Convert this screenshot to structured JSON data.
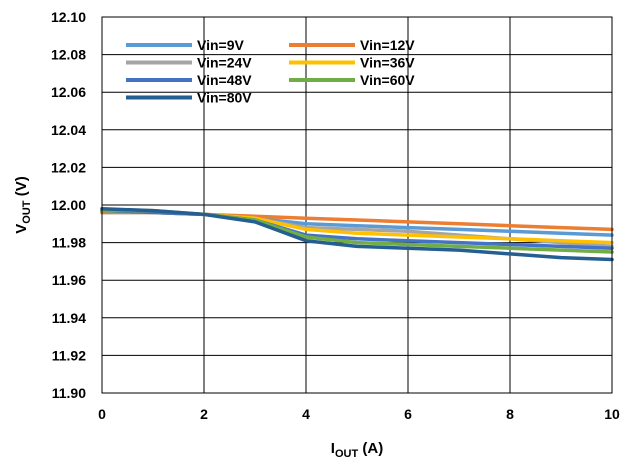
{
  "chart_data": {
    "type": "line",
    "title": "",
    "xlabel": {
      "main": "I",
      "sub": "OUT",
      "unit": " (A)"
    },
    "ylabel": {
      "main": "V",
      "sub": "OUT",
      "unit": " (V)"
    },
    "xlim": [
      0,
      10
    ],
    "ylim": [
      11.9,
      12.1
    ],
    "x_ticks": [
      0,
      2,
      4,
      6,
      8,
      10
    ],
    "x_tick_labels": [
      "0",
      "2",
      "4",
      "6",
      "8",
      "10"
    ],
    "y_ticks": [
      11.9,
      11.92,
      11.94,
      11.96,
      11.98,
      12.0,
      12.02,
      12.04,
      12.06,
      12.08,
      12.1
    ],
    "y_tick_labels": [
      "11.90",
      "11.92",
      "11.94",
      "11.96",
      "11.98",
      "12.00",
      "12.02",
      "12.04",
      "12.06",
      "12.08",
      "12.10"
    ],
    "grid": true,
    "legend_position": "top-left",
    "x": [
      0,
      1,
      2,
      3,
      4,
      5,
      6,
      7,
      8,
      9,
      10
    ],
    "series": [
      {
        "name": "Vin=9V",
        "color": "#5b9bd5",
        "values": [
          11.996,
          11.996,
          11.995,
          11.993,
          11.99,
          11.989,
          11.988,
          11.987,
          11.986,
          11.985,
          11.984
        ]
      },
      {
        "name": "Vin=12V",
        "color": "#ed7d31",
        "values": [
          11.996,
          11.996,
          11.995,
          11.994,
          11.993,
          11.992,
          11.991,
          11.99,
          11.989,
          11.988,
          11.987
        ]
      },
      {
        "name": "Vin=24V",
        "color": "#a5a5a5",
        "values": [
          11.997,
          11.996,
          11.995,
          11.993,
          11.988,
          11.987,
          11.986,
          11.984,
          11.982,
          11.98,
          11.978
        ]
      },
      {
        "name": "Vin=36V",
        "color": "#ffc000",
        "values": [
          11.997,
          11.996,
          11.995,
          11.993,
          11.987,
          11.985,
          11.984,
          11.983,
          11.982,
          11.981,
          11.98
        ]
      },
      {
        "name": "Vin=48V",
        "color": "#4472c4",
        "values": [
          11.997,
          11.996,
          11.995,
          11.992,
          11.984,
          11.982,
          11.981,
          11.98,
          11.979,
          11.978,
          11.977
        ]
      },
      {
        "name": "Vin=60V",
        "color": "#70ad47",
        "values": [
          11.997,
          11.997,
          11.995,
          11.992,
          11.983,
          11.98,
          11.979,
          11.978,
          11.977,
          11.976,
          11.975
        ]
      },
      {
        "name": "Vin=80V",
        "color": "#255e91",
        "values": [
          11.998,
          11.997,
          11.995,
          11.991,
          11.981,
          11.978,
          11.977,
          11.976,
          11.974,
          11.972,
          11.971
        ]
      }
    ]
  }
}
